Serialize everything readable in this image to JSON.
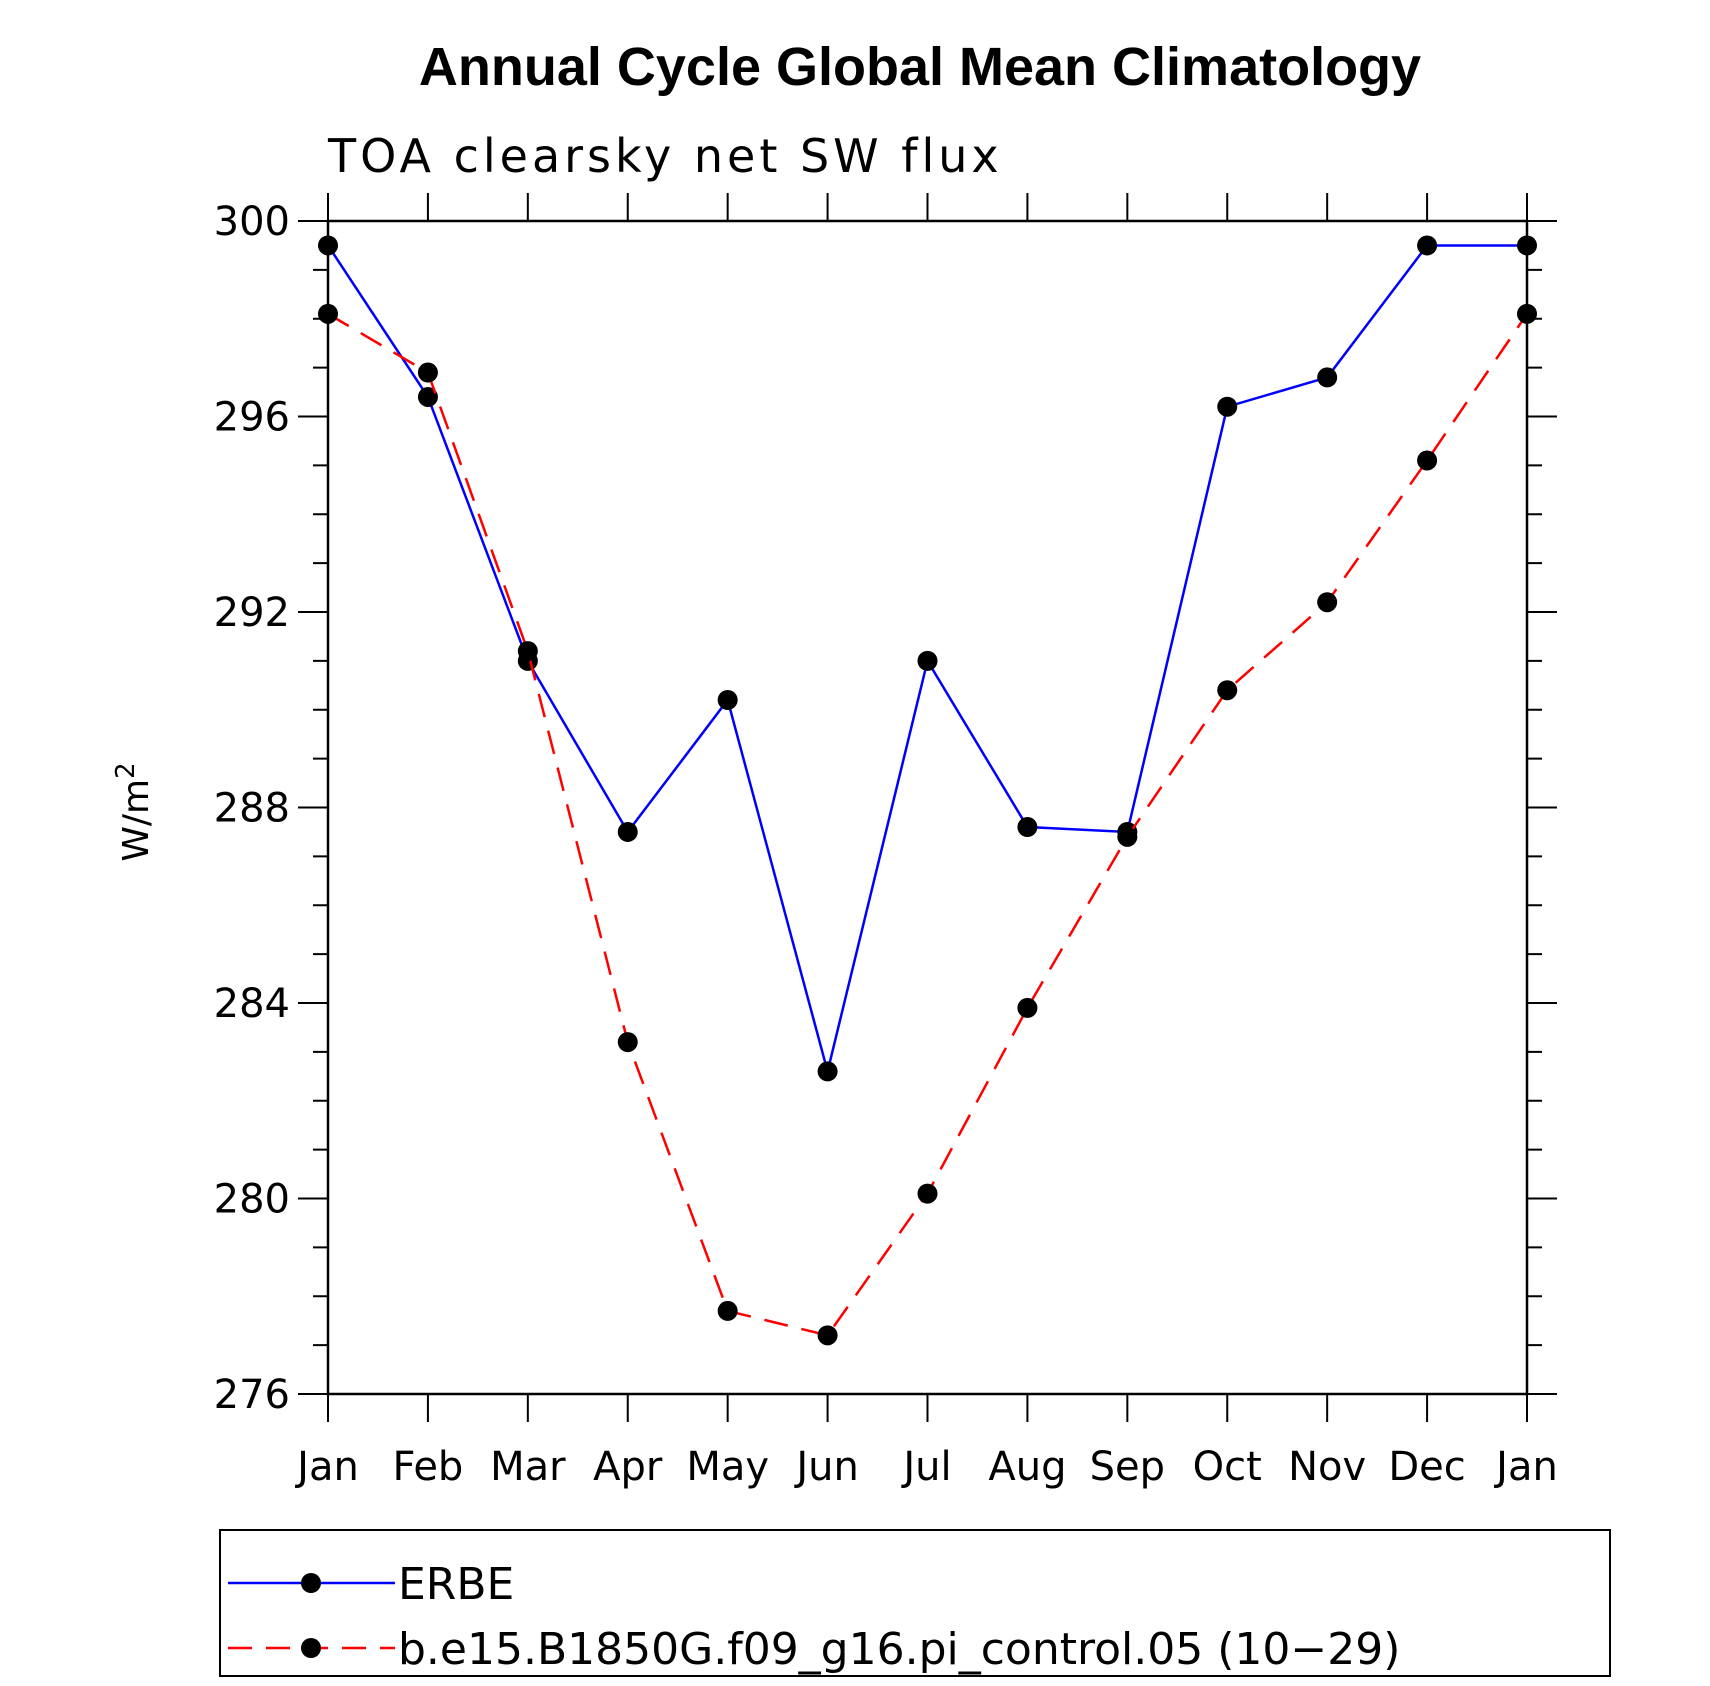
{
  "chart_data": {
    "type": "line",
    "title": "Annual Cycle Global Mean Climatology",
    "subtitle": "TOA clearsky net SW flux",
    "xlabel": "",
    "ylabel": "W/m",
    "ylabel_superscript": "2",
    "categories": [
      "Jan",
      "Feb",
      "Mar",
      "Apr",
      "May",
      "Jun",
      "Jul",
      "Aug",
      "Sep",
      "Oct",
      "Nov",
      "Dec",
      "Jan"
    ],
    "ylim": [
      276,
      300
    ],
    "yticks": [
      276,
      280,
      284,
      288,
      292,
      296,
      300
    ],
    "series": [
      {
        "name": "ERBE",
        "color": "#0000ff",
        "dash": "solid",
        "values": [
          299.5,
          296.4,
          291.0,
          287.5,
          290.2,
          282.6,
          291.0,
          287.6,
          287.5,
          296.2,
          296.8,
          299.5,
          299.5
        ]
      },
      {
        "name": "b.e15.B1850G.f09_g16.pi_control.05 (10−29)",
        "color": "#ff0000",
        "dash": "dashed",
        "values": [
          298.1,
          296.9,
          291.2,
          283.2,
          277.7,
          277.2,
          280.1,
          283.9,
          287.4,
          290.4,
          292.2,
          295.1,
          298.1
        ]
      }
    ],
    "legend_position": "bottom"
  }
}
